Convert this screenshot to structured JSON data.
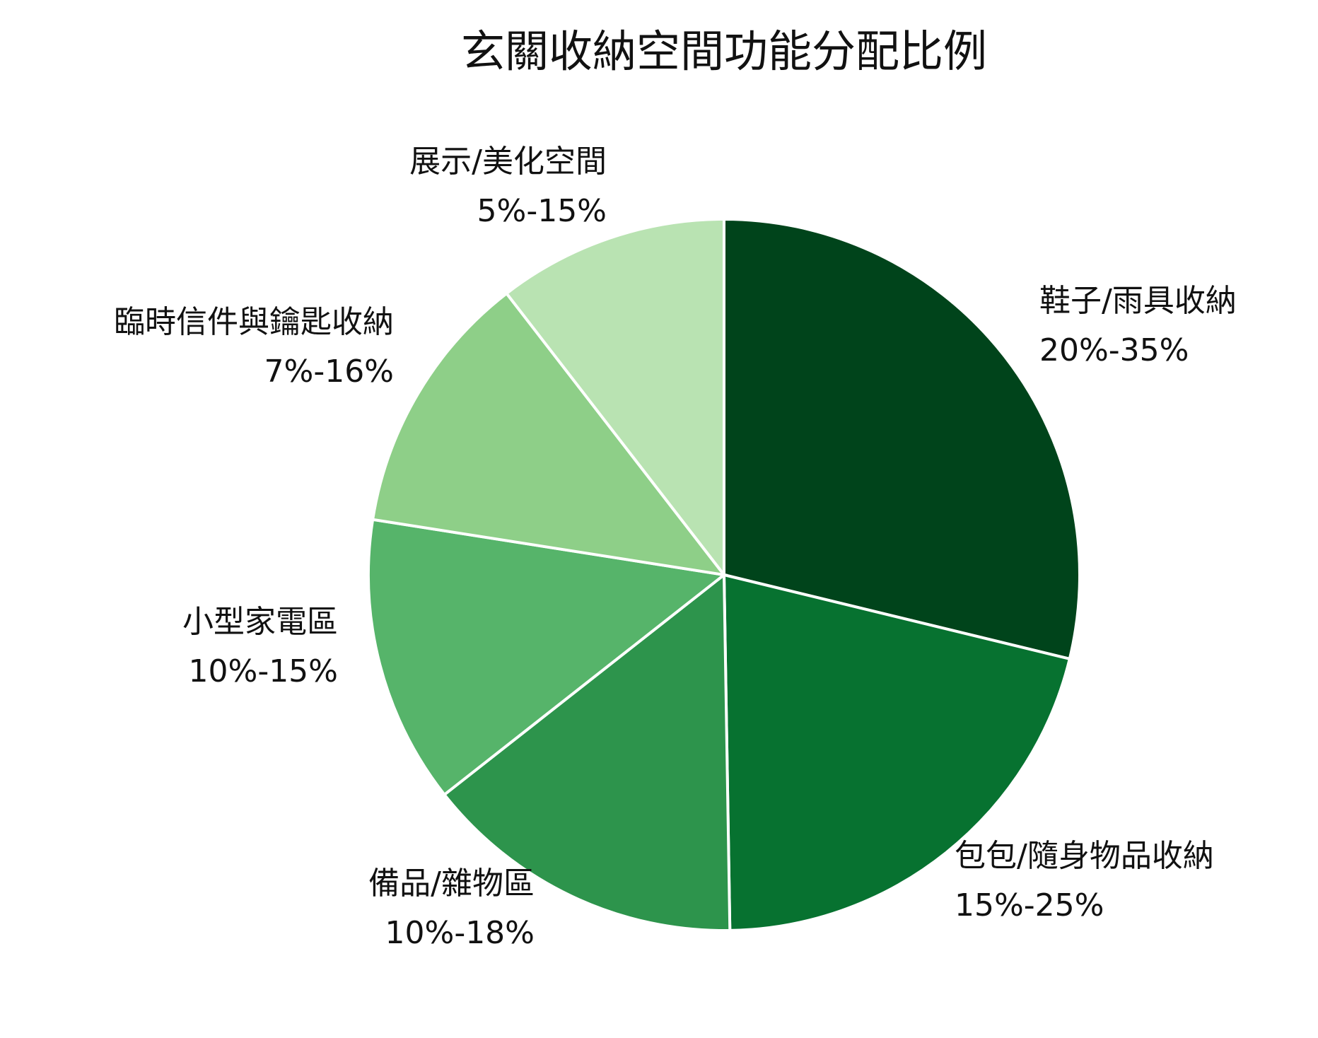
{
  "chart_data": {
    "type": "pie",
    "title": "玄關收納空間功能分配比例",
    "start_angle": "12 o'clock",
    "direction": "clockwise",
    "slices": [
      {
        "label": "鞋子/雨具收納",
        "range": "20%-35%",
        "value": 27.5,
        "color": "#00441b"
      },
      {
        "label": "包包/隨身物品收納",
        "range": "15%-25%",
        "value": 20,
        "color": "#077230"
      },
      {
        "label": "備品/雜物區",
        "range": "10%-18%",
        "value": 14,
        "color": "#2d944c"
      },
      {
        "label": "小型家電區",
        "range": "10%-15%",
        "value": 12.5,
        "color": "#56b46a"
      },
      {
        "label": "臨時信件與鑰匙收納",
        "range": "7%-16%",
        "value": 11.5,
        "color": "#8ecf88"
      },
      {
        "label": "展示/美化空間",
        "range": "5%-15%",
        "value": 10,
        "color": "#b9e3b2"
      }
    ]
  }
}
